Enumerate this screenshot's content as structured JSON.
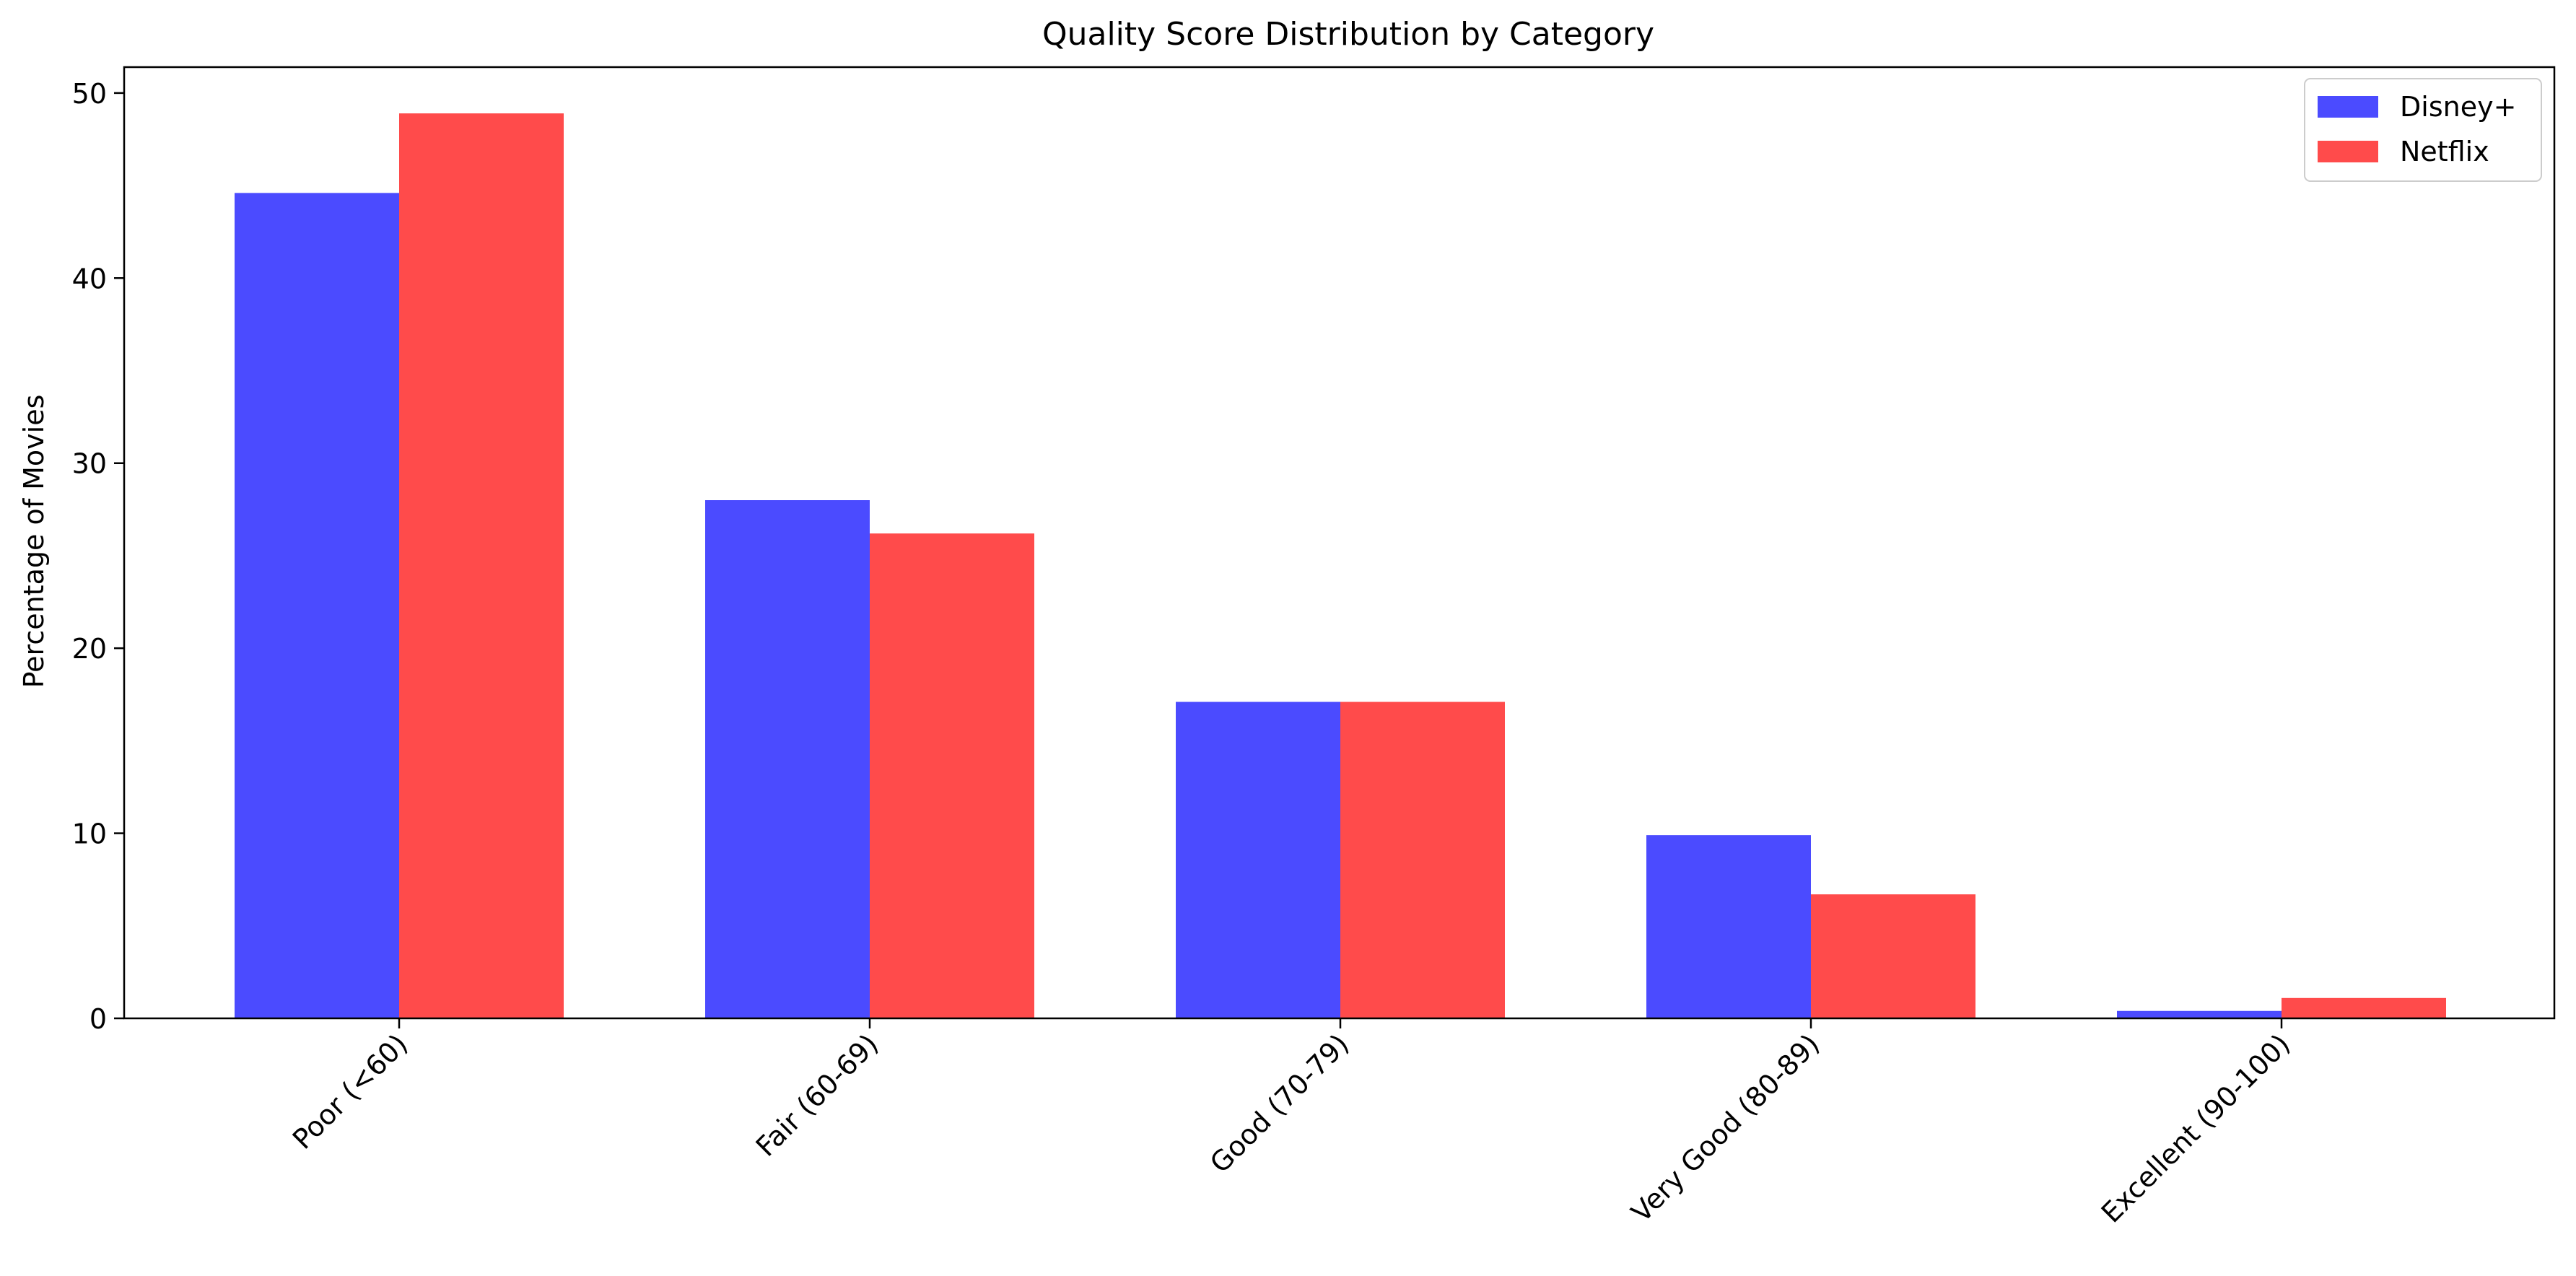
{
  "chart_data": {
    "type": "bar",
    "title": "Quality Score Distribution by Category",
    "xlabel": "",
    "ylabel": "Percentage of Movies",
    "categories": [
      "Poor (<60)",
      "Fair (60-69)",
      "Good (70-79)",
      "Very Good (80-89)",
      "Excellent (90-100)"
    ],
    "series": [
      {
        "name": "Disney+",
        "color": "#4b4bff",
        "values": [
          44.6,
          28.0,
          17.1,
          9.9,
          0.4
        ]
      },
      {
        "name": "Netflix",
        "color": "#ff4b4b",
        "values": [
          48.9,
          26.2,
          17.1,
          6.7,
          1.1
        ]
      }
    ],
    "ylim": [
      0,
      51.4
    ],
    "yticks": [
      0,
      10,
      20,
      30,
      40,
      50
    ],
    "grid": false,
    "legend_position": "top-right"
  }
}
